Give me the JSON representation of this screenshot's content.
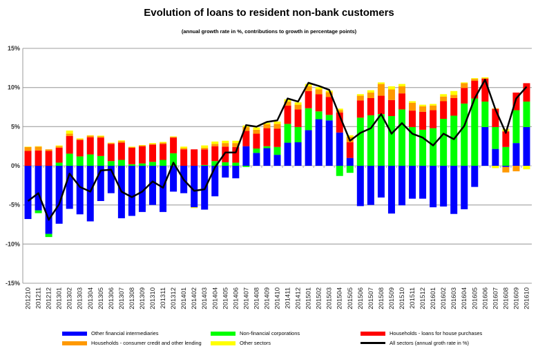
{
  "chart_data": {
    "type": "bar",
    "stacked": true,
    "title": "Evolution of loans to resident non-bank customers",
    "subtitle": "(annual growth rate in %, contributions to growth in percentage points)",
    "ylim": [
      -15,
      15
    ],
    "yticks": [
      -15,
      -10,
      -5,
      0,
      5,
      10,
      15
    ],
    "ytick_labels": [
      "-15%",
      "-10%",
      "-5%",
      "0%",
      "5%",
      "10%",
      "15%"
    ],
    "grid": true,
    "legend_position": "bottom",
    "categories": [
      "201210",
      "201211",
      "201212",
      "201301",
      "201302",
      "201303",
      "201304",
      "201305",
      "201306",
      "201307",
      "201308",
      "201309",
      "201310",
      "201311",
      "201312",
      "201401",
      "201402",
      "201403",
      "201404",
      "201405",
      "201406",
      "201407",
      "201408",
      "201409",
      "201410",
      "201411",
      "201412",
      "201501",
      "201502",
      "201503",
      "201504",
      "201505",
      "201506",
      "201507",
      "201508",
      "201509",
      "201510",
      "201511",
      "201512",
      "201601",
      "201602",
      "201603",
      "201604",
      "201605",
      "201606",
      "201607",
      "201608",
      "201609",
      "201610"
    ],
    "series": [
      {
        "name": "Other financial intermediaries",
        "color": "#0000ff",
        "values": [
          -6.8,
          -5.7,
          -8.7,
          -7.4,
          -5.5,
          -6.2,
          -7.1,
          -4.5,
          -3.5,
          -6.7,
          -6.4,
          -5.9,
          -5.0,
          -5.9,
          -3.3,
          -3.5,
          -5.3,
          -5.6,
          -3.9,
          -1.5,
          -1.6,
          2.5,
          1.65,
          2.25,
          1.4,
          2.95,
          3.0,
          4.55,
          5.95,
          5.8,
          4.25,
          1.0,
          -5.15,
          -5.0,
          -4.05,
          -6.1,
          -5.05,
          -4.2,
          -4.2,
          -5.3,
          -5.2,
          -6.15,
          -5.55,
          -2.7,
          4.95,
          2.15,
          -0.15,
          2.9,
          4.95
        ]
      },
      {
        "name": "Non-financial corporations",
        "color": "#00ff00",
        "values": [
          0,
          -0.35,
          -0.4,
          0.4,
          1.55,
          1.2,
          1.45,
          1.25,
          0.6,
          0.75,
          0.2,
          0.3,
          0.5,
          0.75,
          1.6,
          0,
          0,
          0.1,
          0.6,
          0.45,
          0.4,
          -0.15,
          0.55,
          0.25,
          1.0,
          2.4,
          1.95,
          2.8,
          1.0,
          0.7,
          -1.3,
          -0.9,
          6.15,
          6.45,
          6.6,
          6.35,
          7.2,
          4.95,
          4.6,
          4.8,
          6.0,
          6.4,
          7.95,
          8.6,
          3.25,
          2.8,
          2.4,
          4.2,
          3.25
        ]
      },
      {
        "name": "Households - loans for house purchases",
        "color": "#ff0000",
        "values": [
          1.9,
          1.95,
          1.9,
          1.9,
          2.25,
          2.1,
          2.2,
          2.35,
          2.2,
          2.2,
          2.1,
          2.2,
          2.2,
          2.05,
          2.0,
          2.1,
          2.1,
          2.0,
          1.9,
          2.0,
          2.0,
          1.95,
          1.9,
          2.3,
          2.35,
          2.35,
          2.25,
          2.2,
          2.2,
          2.3,
          2.55,
          2.0,
          2.2,
          2.2,
          2.35,
          2.05,
          2.05,
          2.1,
          2.3,
          2.3,
          2.25,
          2.25,
          2.0,
          2.25,
          2.95,
          2.3,
          2.0,
          2.25,
          2.35
        ]
      },
      {
        "name": "Households - consumer credit and other lending",
        "color": "#ff9900",
        "values": [
          0.5,
          0.5,
          0.2,
          0.2,
          0.3,
          0.1,
          0.2,
          0.15,
          0.1,
          0.2,
          0.1,
          0.1,
          0.1,
          0.15,
          0.1,
          0.15,
          0,
          0.2,
          0.3,
          0.45,
          0.5,
          0.5,
          0.5,
          0.5,
          0.6,
          0.5,
          0.6,
          0.6,
          0.6,
          0.6,
          0.3,
          0.7,
          0.6,
          0.7,
          1.5,
          1.35,
          0.9,
          1.0,
          0.7,
          0.6,
          0.6,
          0.4,
          0.6,
          0.25,
          0,
          0.1,
          -0.7,
          -0.7,
          0
        ]
      },
      {
        "name": "Other sectors",
        "color": "#ffff00",
        "values": [
          0.05,
          0.05,
          0,
          0.1,
          0.4,
          0.1,
          0.05,
          0.1,
          0.05,
          0.1,
          0.05,
          0.05,
          0.1,
          0.1,
          0.05,
          0.2,
          -0.1,
          0.3,
          0.3,
          0.3,
          0.3,
          0.2,
          0.3,
          0.2,
          0.3,
          0.3,
          0.3,
          0.3,
          0.3,
          0.2,
          0.2,
          0.2,
          0.2,
          0.3,
          0.2,
          0.4,
          0.3,
          0.2,
          0.2,
          0.2,
          0.3,
          0.5,
          0.1,
          0.1,
          0.15,
          -0.3,
          0.3,
          0,
          -0.45
        ]
      }
    ],
    "line": {
      "name": "All sectors (annual groth rate in %)",
      "color": "#000000",
      "values": [
        -4.5,
        -3.5,
        -6.9,
        -4.9,
        -1.0,
        -2.7,
        -3.3,
        -0.6,
        -0.5,
        -3.3,
        -4.0,
        -3.3,
        -2.0,
        -2.8,
        0.4,
        -1.8,
        -3.2,
        -3.0,
        -0.2,
        1.7,
        1.7,
        5.2,
        5.0,
        5.6,
        5.8,
        8.6,
        8.2,
        10.6,
        10.2,
        9.7,
        6.4,
        3.2,
        4.2,
        4.8,
        6.6,
        4.1,
        5.45,
        4.1,
        3.6,
        2.6,
        4.1,
        3.4,
        5.1,
        8.6,
        11.0,
        7.2,
        4.2,
        8.6,
        10.1
      ]
    }
  }
}
